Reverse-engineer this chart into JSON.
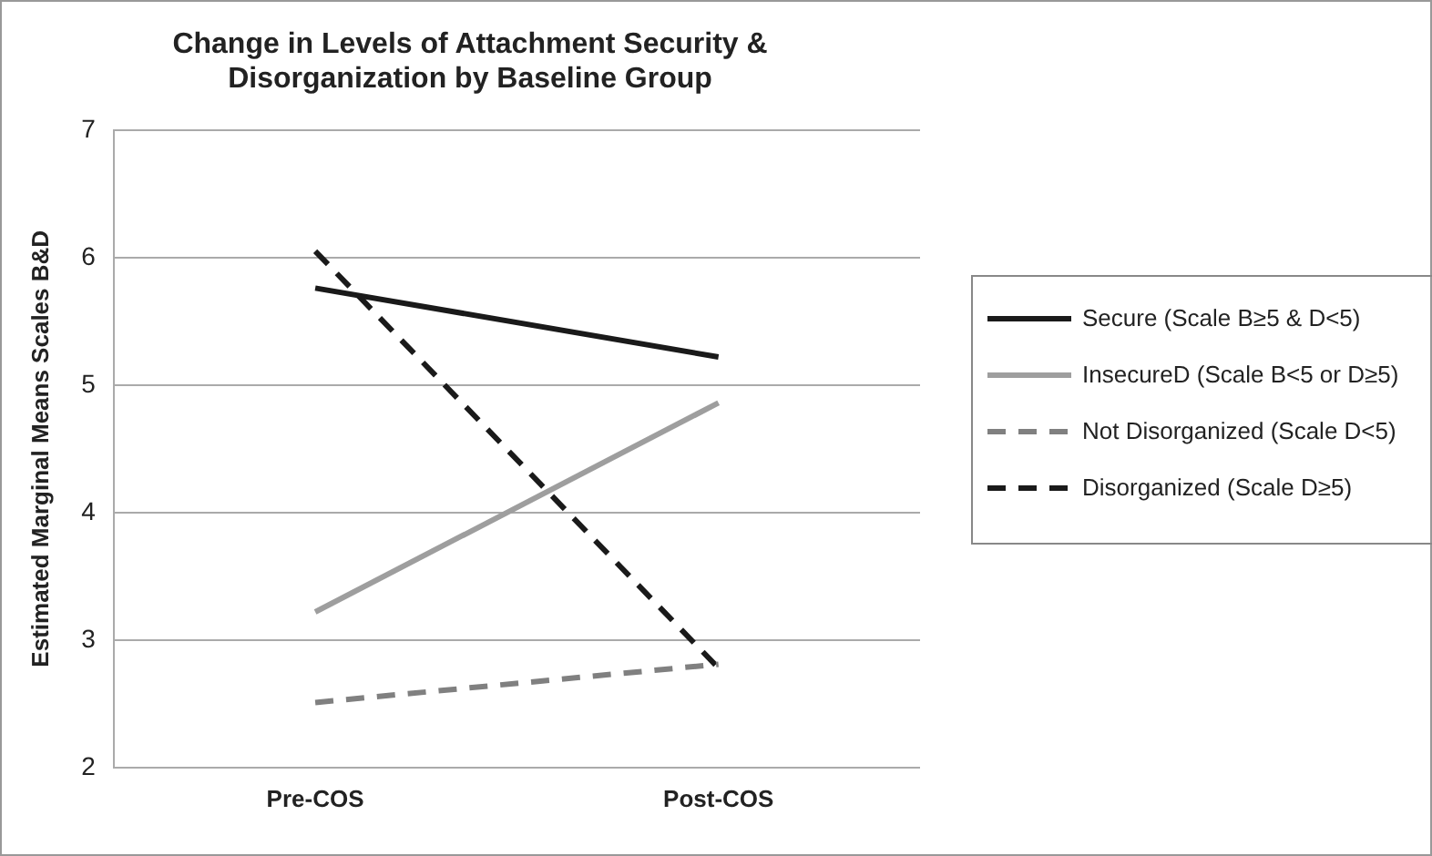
{
  "chart_data": {
    "type": "line",
    "title": "Change in Levels of Attachment Security & Disorganization by Baseline Group",
    "ylabel": "Estimated Marginal Means Scales B&D",
    "categories": [
      "Pre-COS",
      "Post-COS"
    ],
    "series": [
      {
        "name": "Secure (Scale B≥5 & D<5)",
        "color": "#1a1a1a",
        "line_style": "solid",
        "values": [
          5.76,
          5.22
        ]
      },
      {
        "name": "InsecureD (Scale B<5 or D≥5)",
        "color": "#9e9e9e",
        "line_style": "solid",
        "values": [
          3.22,
          4.86
        ]
      },
      {
        "name": "Not Disorganized (Scale D<5)",
        "color": "#808080",
        "line_style": "dashed",
        "values": [
          2.51,
          2.81
        ]
      },
      {
        "name": "Disorganized (Scale D≥5)",
        "color": "#1a1a1a",
        "line_style": "dashed",
        "values": [
          6.05,
          2.78
        ]
      }
    ],
    "ylim": [
      2,
      7
    ],
    "yticks": [
      2,
      3,
      4,
      5,
      6,
      7
    ],
    "grid": "y",
    "legend": "right",
    "marker": "none"
  }
}
